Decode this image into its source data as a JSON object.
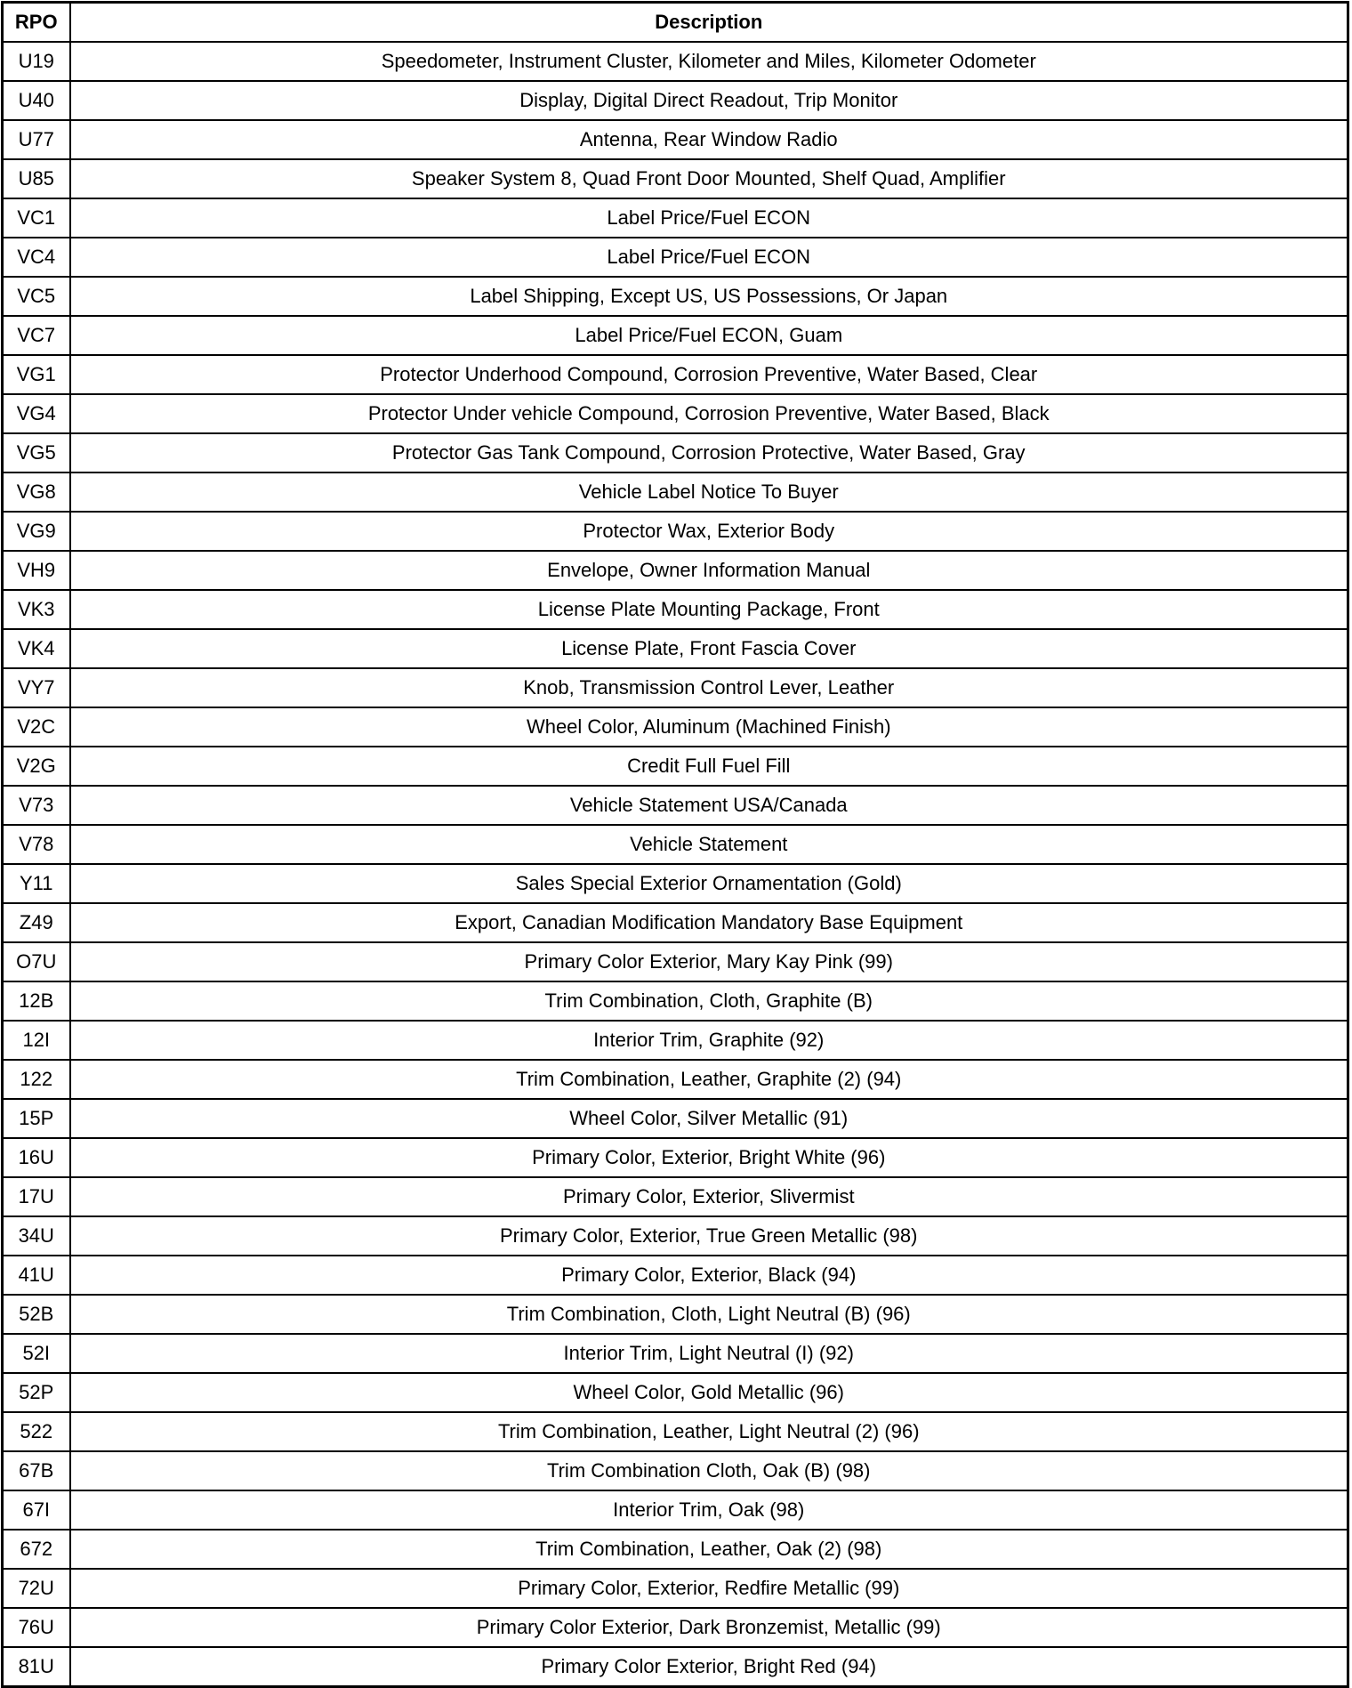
{
  "table": {
    "headers": [
      "RPO",
      "Description"
    ],
    "rows": [
      [
        "U19",
        "Speedometer, Instrument Cluster, Kilometer and Miles, Kilometer Odometer"
      ],
      [
        "U40",
        "Display, Digital Direct Readout, Trip Monitor"
      ],
      [
        "U77",
        "Antenna, Rear Window Radio"
      ],
      [
        "U85",
        "Speaker System 8, Quad Front Door Mounted, Shelf Quad, Amplifier"
      ],
      [
        "VC1",
        "Label Price/Fuel ECON"
      ],
      [
        "VC4",
        "Label Price/Fuel ECON"
      ],
      [
        "VC5",
        "Label Shipping, Except US, US Possessions, Or Japan"
      ],
      [
        "VC7",
        "Label Price/Fuel ECON, Guam"
      ],
      [
        "VG1",
        "Protector Underhood Compound, Corrosion Preventive, Water Based, Clear"
      ],
      [
        "VG4",
        "Protector Under vehicle Compound, Corrosion Preventive, Water Based, Black"
      ],
      [
        "VG5",
        "Protector Gas Tank Compound, Corrosion Protective, Water Based, Gray"
      ],
      [
        "VG8",
        "Vehicle Label Notice To Buyer"
      ],
      [
        "VG9",
        "Protector Wax, Exterior Body"
      ],
      [
        "VH9",
        "Envelope, Owner Information Manual"
      ],
      [
        "VK3",
        "License Plate Mounting Package, Front"
      ],
      [
        "VK4",
        "License Plate, Front Fascia Cover"
      ],
      [
        "VY7",
        "Knob, Transmission Control Lever, Leather"
      ],
      [
        "V2C",
        "Wheel Color, Aluminum (Machined Finish)"
      ],
      [
        "V2G",
        "Credit Full Fuel Fill"
      ],
      [
        "V73",
        "Vehicle Statement USA/Canada"
      ],
      [
        "V78",
        "Vehicle Statement"
      ],
      [
        "Y11",
        "Sales Special Exterior Ornamentation (Gold)"
      ],
      [
        "Z49",
        "Export, Canadian Modification Mandatory Base Equipment"
      ],
      [
        "O7U",
        "Primary Color Exterior, Mary Kay Pink (99)"
      ],
      [
        "12B",
        "Trim Combination, Cloth, Graphite (B)"
      ],
      [
        "12I",
        "Interior Trim, Graphite (92)"
      ],
      [
        "122",
        "Trim Combination, Leather, Graphite (2) (94)"
      ],
      [
        "15P",
        "Wheel Color, Silver Metallic (91)"
      ],
      [
        "16U",
        "Primary Color, Exterior, Bright White (96)"
      ],
      [
        "17U",
        "Primary Color, Exterior, Slivermist"
      ],
      [
        "34U",
        "Primary Color, Exterior, True Green Metallic (98)"
      ],
      [
        "41U",
        "Primary Color, Exterior, Black (94)"
      ],
      [
        "52B",
        "Trim Combination, Cloth, Light Neutral (B) (96)"
      ],
      [
        "52I",
        "Interior Trim, Light Neutral (I) (92)"
      ],
      [
        "52P",
        "Wheel Color, Gold Metallic (96)"
      ],
      [
        "522",
        "Trim Combination, Leather, Light Neutral (2) (96)"
      ],
      [
        "67B",
        "Trim Combination Cloth, Oak (B) (98)"
      ],
      [
        "67I",
        "Interior Trim, Oak (98)"
      ],
      [
        "672",
        "Trim Combination, Leather, Oak (2) (98)"
      ],
      [
        "72U",
        "Primary Color, Exterior, Redfire Metallic (99)"
      ],
      [
        "76U",
        "Primary Color Exterior, Dark Bronzemist, Metallic (99)"
      ],
      [
        "81U",
        "Primary Color Exterior, Bright Red (94)"
      ]
    ]
  }
}
